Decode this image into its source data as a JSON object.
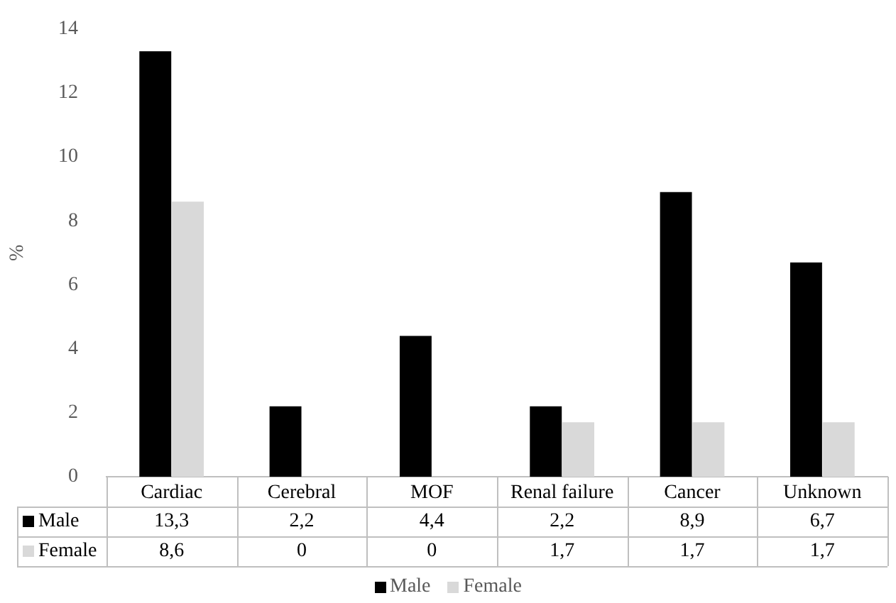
{
  "chart_data": {
    "type": "bar",
    "ylabel": "%",
    "categories": [
      "Cardiac",
      "Cerebral",
      "MOF",
      "Renal failure",
      "Cancer",
      "Unknown"
    ],
    "series": [
      {
        "name": "Male",
        "color": "#000000",
        "values": [
          13.3,
          2.2,
          4.4,
          2.2,
          8.9,
          6.7
        ],
        "value_labels": [
          "13,3",
          "2,2",
          "4,4",
          "2,2",
          "8,9",
          "6,7"
        ]
      },
      {
        "name": "Female",
        "color": "#d9d9d9",
        "values": [
          8.6,
          0,
          0,
          1.7,
          1.7,
          1.7
        ],
        "value_labels": [
          "8,6",
          "0",
          "0",
          "1,7",
          "1,7",
          "1,7"
        ]
      }
    ],
    "ylim": [
      0,
      14
    ],
    "yticks": [
      0,
      2,
      4,
      6,
      8,
      10,
      12,
      14
    ],
    "legend": "bottom"
  }
}
